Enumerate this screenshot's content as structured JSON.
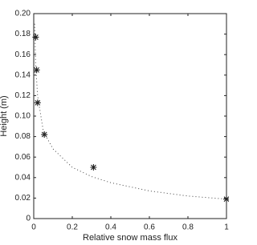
{
  "chart_data": {
    "type": "scatter",
    "xlabel": "Relative snow mass flux",
    "ylabel": "Height (m)",
    "xlim": [
      0,
      1
    ],
    "ylim": [
      0,
      0.2
    ],
    "xticks": [
      0,
      0.2,
      0.4,
      0.6,
      0.8,
      1
    ],
    "yticks": [
      0,
      0.02,
      0.04,
      0.06,
      0.08,
      {
        "value": 0.1,
        "label": "0.10"
      },
      0.12,
      0.14,
      0.16,
      0.18,
      {
        "value": 0.2,
        "label": "0.20"
      }
    ],
    "series": [
      {
        "marker": "*",
        "color": "#222222",
        "x": [
          0.01,
          0.015,
          0.02,
          0.055,
          0.31,
          1
        ],
        "values": [
          0.177,
          0.145,
          0.113,
          0.082,
          0.05,
          0.019
        ]
      },
      {
        "line": "dotted",
        "color": "#444444",
        "x": [
          0.005,
          0.01,
          0.02,
          0.05,
          0.1,
          0.2,
          0.3,
          0.4,
          0.6,
          0.8,
          1
        ],
        "values": [
          0.19,
          0.15,
          0.12,
          0.085,
          0.068,
          0.05,
          0.041,
          0.035,
          0.027,
          0.022,
          0.019
        ]
      }
    ]
  }
}
